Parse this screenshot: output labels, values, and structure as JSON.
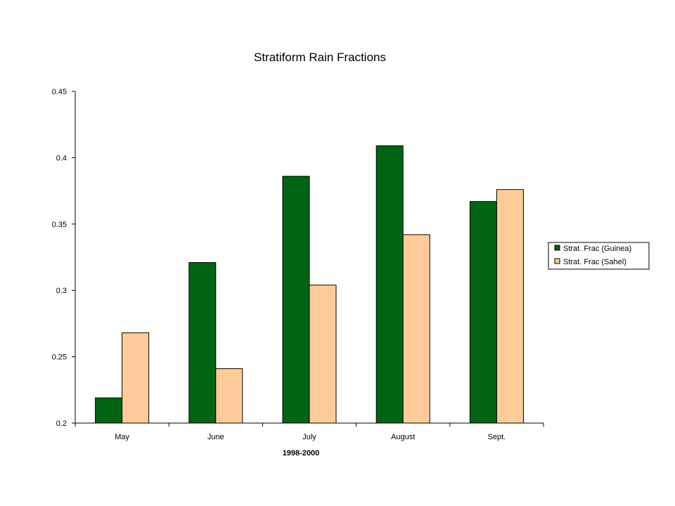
{
  "chart_data": {
    "type": "bar",
    "title": "Stratiform Rain Fractions",
    "xlabel": "1998-2000",
    "ylabel": "",
    "categories": [
      "May",
      "June",
      "July",
      "August",
      "Sept."
    ],
    "series": [
      {
        "name": "Strat. Frac (Guinea)",
        "color": "#006414",
        "values": [
          0.219,
          0.321,
          0.386,
          0.409,
          0.367
        ]
      },
      {
        "name": "Strat. Frac (Sahel)",
        "color": "#FFCC99",
        "values": [
          0.268,
          0.241,
          0.304,
          0.342,
          0.376
        ]
      }
    ],
    "ylim": [
      0.2,
      0.45
    ],
    "yticks": [
      0.2,
      0.25,
      0.3,
      0.35,
      0.4,
      0.45
    ],
    "ytick_labels": [
      "0.2",
      "0.25",
      "0.3",
      "0.35",
      "0.4",
      "0.45"
    ],
    "grid": false,
    "legend": "right"
  }
}
